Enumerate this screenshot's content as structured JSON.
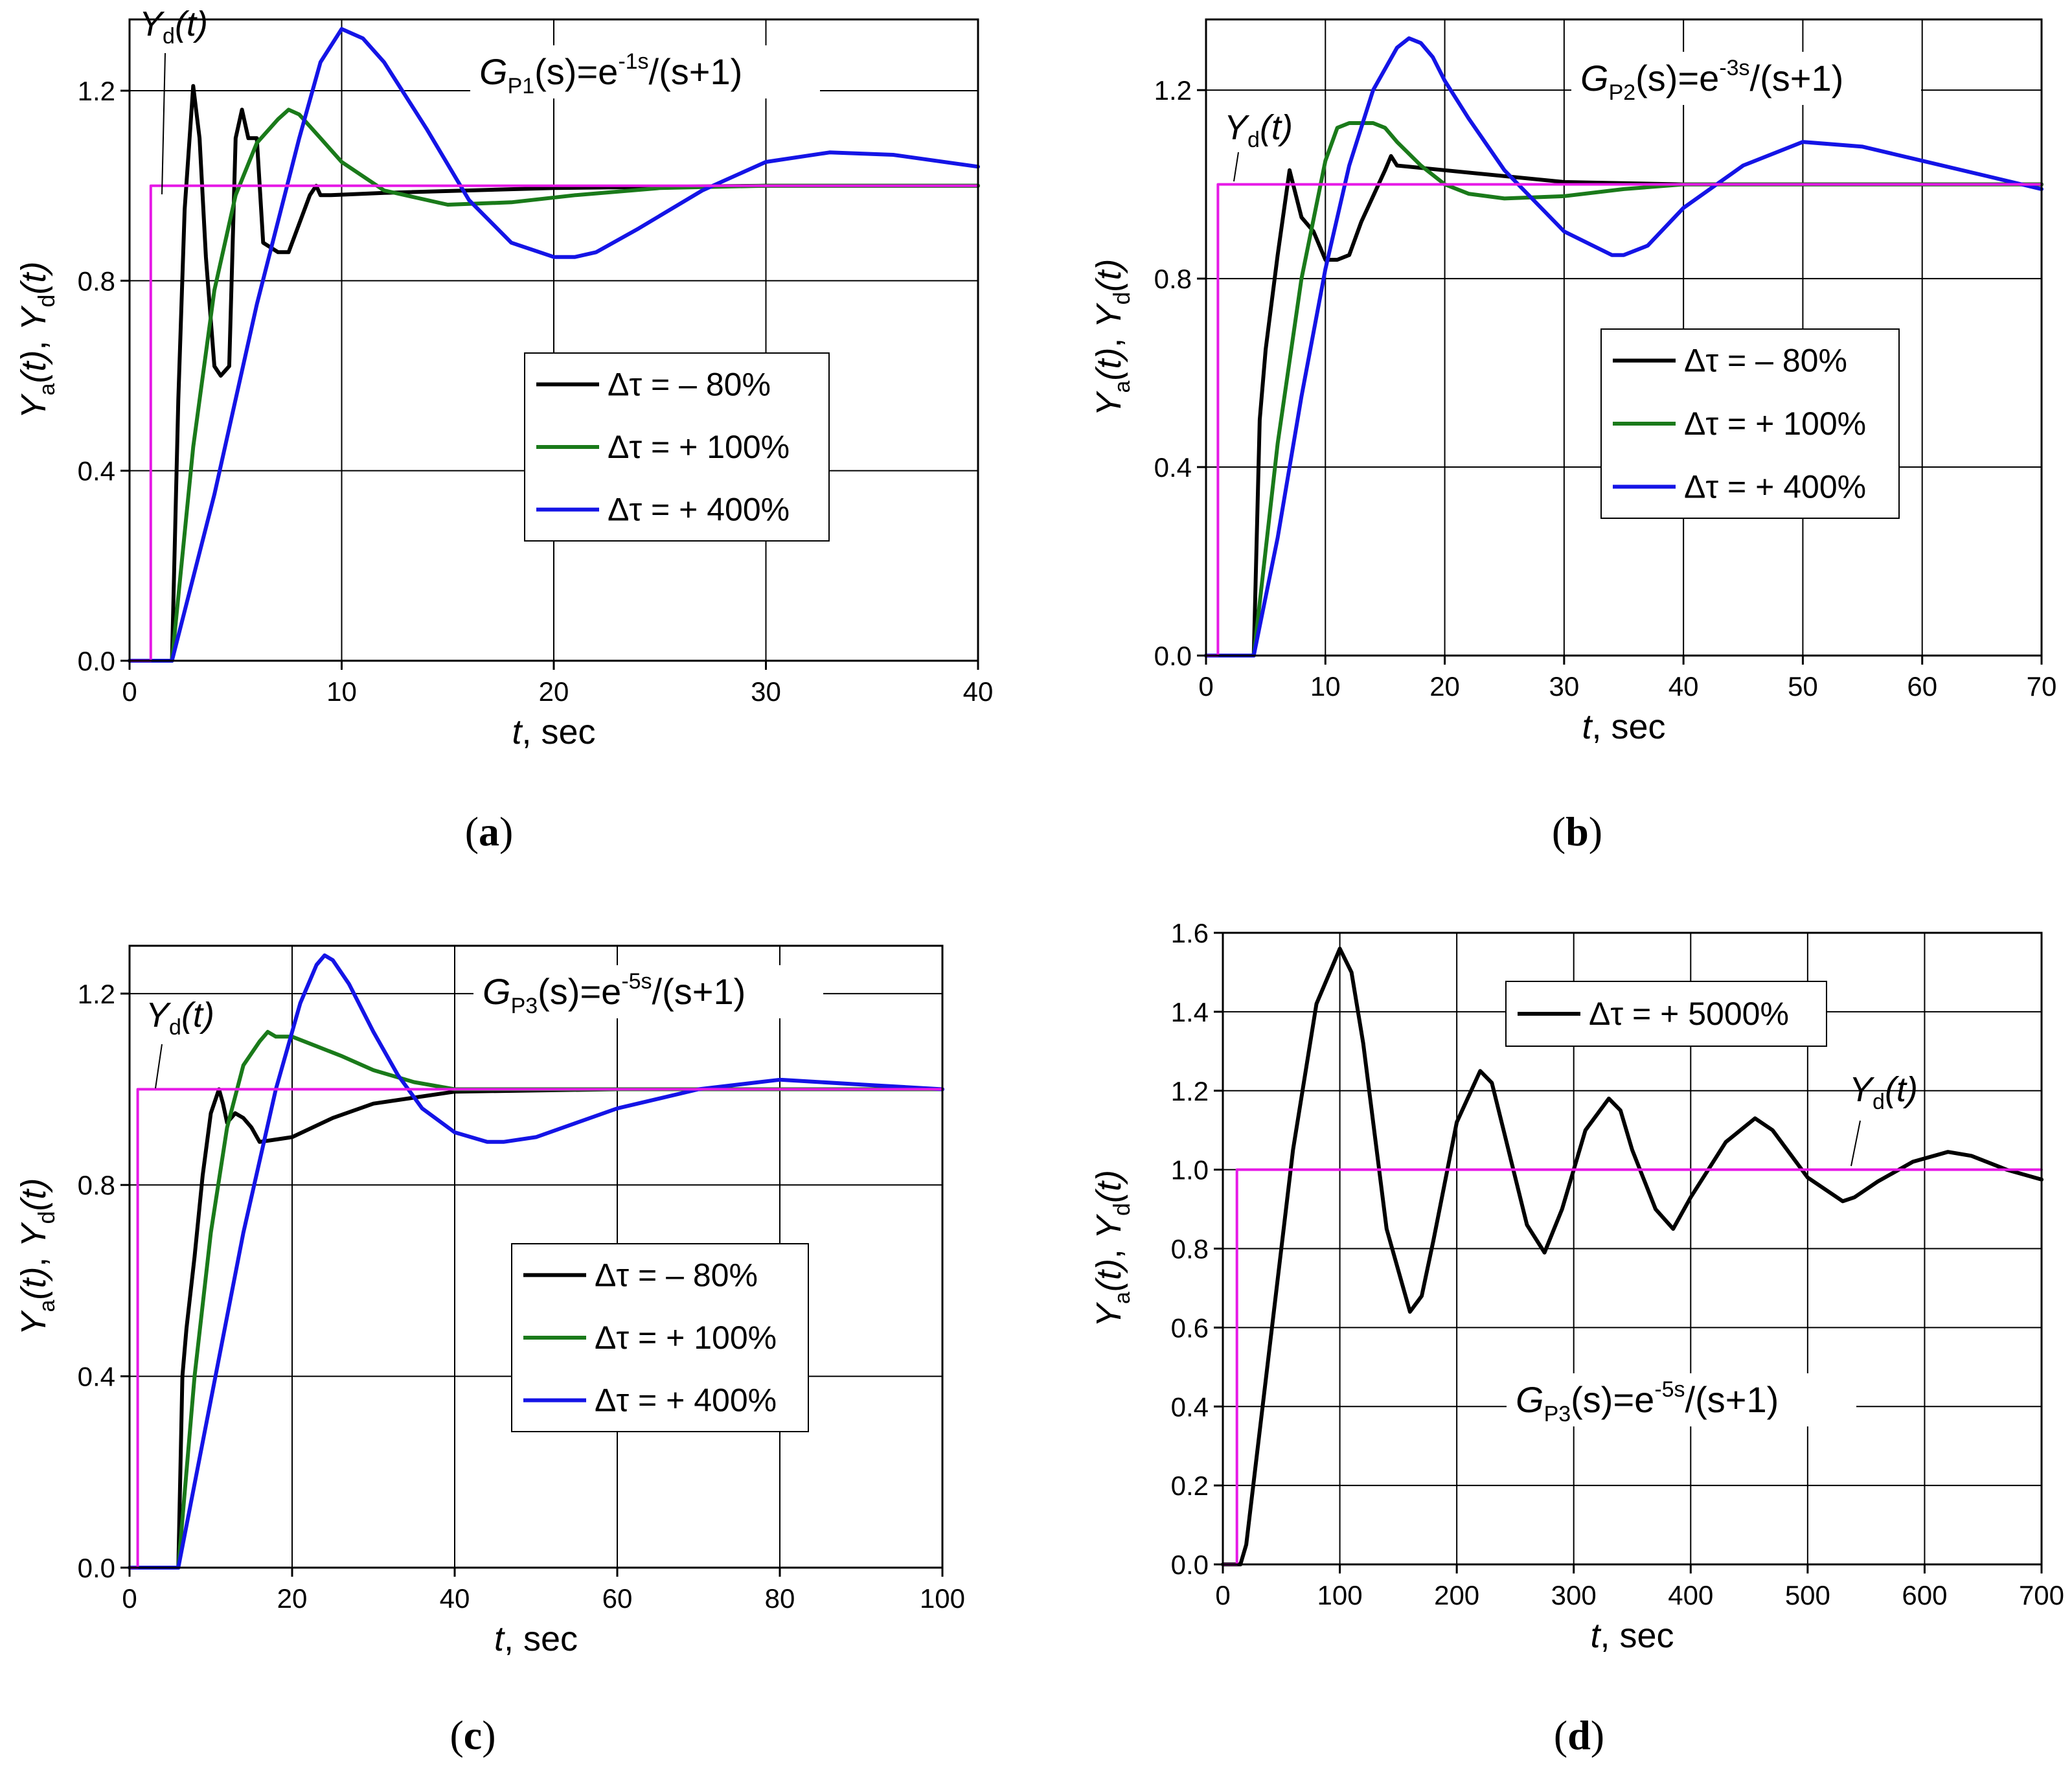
{
  "colors": {
    "black": "#000000",
    "green": "#1a7a1a",
    "blue": "#1414e6",
    "magenta": "#e619e6"
  },
  "chart_data": [
    {
      "id": "a",
      "type": "line",
      "caption": "a",
      "title": {
        "italic": "G",
        "sub": "P1",
        "pre": "(s)=e",
        "sup": "-1s",
        "post": "/(s+1)"
      },
      "xlabel_italic": "t",
      "xlabel_rest": ", sec",
      "ylabel": {
        "y1": "Y",
        "s1": "a",
        "t1": "(t)",
        "sep": ", ",
        "y2": "Y",
        "s2": "d",
        "t2": "(t)"
      },
      "yd_label": {
        "y": "Y",
        "s": "d",
        "t": "(t)"
      },
      "xlim": [
        0,
        40
      ],
      "ylim": [
        0,
        1.35
      ],
      "xticks": [
        0,
        10,
        20,
        30,
        40
      ],
      "xticklabels": [
        "0",
        "10",
        "20",
        "30",
        "40"
      ],
      "yticks": [
        0,
        0.4,
        0.8,
        1.2
      ],
      "yticklabels": [
        "0.0",
        "0.4",
        "0.8",
        "1.2"
      ],
      "legend": [
        "Δτ = – 80%",
        "Δτ = + 100%",
        "Δτ = + 400%"
      ],
      "series": [
        {
          "name": "Δτ = – 80%",
          "color": "black",
          "x": [
            0,
            2,
            2.3,
            2.6,
            3,
            3.3,
            3.6,
            4,
            4.3,
            4.7,
            5,
            5.3,
            5.6,
            6,
            6.3,
            7,
            7.5,
            8,
            8.5,
            8.8,
            9,
            9.5,
            12,
            20,
            30,
            40
          ],
          "y": [
            0,
            0,
            0.55,
            0.95,
            1.21,
            1.1,
            0.85,
            0.62,
            0.6,
            0.62,
            1.1,
            1.16,
            1.1,
            1.1,
            0.88,
            0.86,
            0.86,
            0.92,
            0.98,
            1.0,
            0.98,
            0.98,
            0.985,
            0.995,
            1.0,
            1.0
          ]
        },
        {
          "name": "Δτ = + 100%",
          "color": "green",
          "x": [
            0,
            2,
            3,
            4,
            5,
            6,
            7,
            7.5,
            8,
            9,
            10,
            12,
            15,
            18,
            21,
            25,
            30,
            35,
            40
          ],
          "y": [
            0,
            0,
            0.45,
            0.78,
            0.98,
            1.09,
            1.14,
            1.16,
            1.15,
            1.1,
            1.05,
            0.99,
            0.96,
            0.965,
            0.98,
            0.995,
            1.0,
            1.0,
            1.0
          ]
        },
        {
          "name": "Δτ = + 400%",
          "color": "blue",
          "x": [
            0,
            2,
            4,
            6,
            8,
            9,
            10,
            11,
            12,
            14,
            16,
            18,
            20,
            21,
            22,
            24,
            27,
            30,
            33,
            36,
            40
          ],
          "y": [
            0,
            0,
            0.35,
            0.75,
            1.1,
            1.26,
            1.33,
            1.31,
            1.26,
            1.12,
            0.97,
            0.88,
            0.85,
            0.85,
            0.86,
            0.91,
            0.99,
            1.05,
            1.07,
            1.065,
            1.04
          ]
        },
        {
          "name": "Y_d",
          "color": "magenta",
          "x": [
            0,
            1,
            1,
            40
          ],
          "y": [
            0,
            0,
            1,
            1
          ]
        }
      ]
    },
    {
      "id": "b",
      "type": "line",
      "caption": "b",
      "title": {
        "italic": "G",
        "sub": "P2",
        "pre": "(s)=e",
        "sup": "-3s",
        "post": "/(s+1)"
      },
      "xlabel_italic": "t",
      "xlabel_rest": ", sec",
      "ylabel": {
        "y1": "Y",
        "s1": "a",
        "t1": "(t)",
        "sep": ", ",
        "y2": "Y",
        "s2": "d",
        "t2": "(t)"
      },
      "yd_label": {
        "y": "Y",
        "s": "d",
        "t": "(t)"
      },
      "xlim": [
        0,
        70
      ],
      "ylim": [
        0,
        1.35
      ],
      "xticks": [
        0,
        10,
        20,
        30,
        40,
        50,
        60,
        70
      ],
      "xticklabels": [
        "0",
        "10",
        "20",
        "30",
        "40",
        "50",
        "60",
        "70"
      ],
      "yticks": [
        0,
        0.4,
        0.8,
        1.2
      ],
      "yticklabels": [
        "0.0",
        "0.4",
        "0.8",
        "1.2"
      ],
      "legend": [
        "Δτ = – 80%",
        "Δτ = + 100%",
        "Δτ = + 400%"
      ],
      "series": [
        {
          "name": "Δτ = – 80%",
          "color": "black",
          "x": [
            0,
            4,
            4.5,
            5,
            6,
            7,
            7.3,
            8,
            9,
            10,
            11,
            12,
            13,
            15,
            15.5,
            16,
            20,
            30,
            40,
            70
          ],
          "y": [
            0,
            0,
            0.5,
            0.65,
            0.85,
            1.03,
            1.0,
            0.93,
            0.9,
            0.84,
            0.84,
            0.85,
            0.92,
            1.03,
            1.06,
            1.04,
            1.03,
            1.005,
            1.0,
            1.0
          ]
        },
        {
          "name": "Δτ = + 100%",
          "color": "green",
          "x": [
            0,
            4,
            6,
            8,
            10,
            11,
            12,
            14,
            15,
            16,
            18,
            20,
            22,
            25,
            30,
            35,
            40,
            50,
            70
          ],
          "y": [
            0,
            0,
            0.45,
            0.8,
            1.05,
            1.12,
            1.13,
            1.13,
            1.12,
            1.09,
            1.04,
            1.0,
            0.98,
            0.97,
            0.975,
            0.99,
            1.0,
            1.0,
            1.0
          ]
        },
        {
          "name": "Δτ = + 400%",
          "color": "blue",
          "x": [
            0,
            4,
            6,
            8,
            10,
            12,
            14,
            16,
            17,
            18,
            19,
            20,
            22,
            25,
            30,
            34,
            35,
            37,
            40,
            45,
            50,
            55,
            60,
            65,
            70
          ],
          "y": [
            0,
            0,
            0.25,
            0.55,
            0.82,
            1.04,
            1.2,
            1.29,
            1.31,
            1.3,
            1.27,
            1.22,
            1.14,
            1.03,
            0.9,
            0.85,
            0.85,
            0.87,
            0.95,
            1.04,
            1.09,
            1.08,
            1.05,
            1.02,
            0.99
          ]
        },
        {
          "name": "Y_d",
          "color": "magenta",
          "x": [
            0,
            1,
            1,
            70
          ],
          "y": [
            0,
            0,
            1,
            1
          ]
        }
      ]
    },
    {
      "id": "c",
      "type": "line",
      "caption": "c",
      "title": {
        "italic": "G",
        "sub": "P3",
        "pre": "(s)=e",
        "sup": "-5s",
        "post": "/(s+1)"
      },
      "xlabel_italic": "t",
      "xlabel_rest": ", sec",
      "ylabel": {
        "y1": "Y",
        "s1": "a",
        "t1": "(t)",
        "sep": ", ",
        "y2": "Y",
        "s2": "d",
        "t2": "(t)"
      },
      "yd_label": {
        "y": "Y",
        "s": "d",
        "t": "(t)"
      },
      "xlim": [
        0,
        100
      ],
      "ylim": [
        0,
        1.3
      ],
      "xticks": [
        0,
        20,
        40,
        60,
        80,
        100
      ],
      "xticklabels": [
        "0",
        "20",
        "40",
        "60",
        "80",
        "100"
      ],
      "yticks": [
        0,
        0.4,
        0.8,
        1.2
      ],
      "yticklabels": [
        "0.0",
        "0.4",
        "0.8",
        "1.2"
      ],
      "legend": [
        "Δτ = – 80%",
        "Δτ = + 100%",
        "Δτ = + 400%"
      ],
      "series": [
        {
          "name": "Δτ = – 80%",
          "color": "black",
          "x": [
            0,
            6,
            6.5,
            7,
            8,
            9,
            10,
            11,
            11.5,
            12,
            13,
            14,
            15,
            16,
            18,
            20,
            25,
            30,
            40,
            60,
            100
          ],
          "y": [
            0,
            0,
            0.4,
            0.5,
            0.65,
            0.82,
            0.95,
            1.0,
            0.97,
            0.93,
            0.95,
            0.94,
            0.92,
            0.89,
            0.895,
            0.9,
            0.94,
            0.97,
            0.995,
            1.0,
            1.0
          ]
        },
        {
          "name": "Δτ = + 100%",
          "color": "green",
          "x": [
            0,
            6,
            8,
            10,
            12,
            14,
            16,
            17,
            18,
            20,
            23,
            26,
            30,
            35,
            40,
            50,
            100
          ],
          "y": [
            0,
            0,
            0.4,
            0.7,
            0.92,
            1.05,
            1.1,
            1.12,
            1.11,
            1.11,
            1.09,
            1.07,
            1.04,
            1.015,
            1.0,
            1.0,
            1.0
          ]
        },
        {
          "name": "Δτ = + 400%",
          "color": "blue",
          "x": [
            0,
            6,
            10,
            14,
            18,
            21,
            23,
            24,
            25,
            27,
            30,
            33,
            36,
            40,
            44,
            46,
            50,
            55,
            60,
            70,
            80,
            90,
            100
          ],
          "y": [
            0,
            0,
            0.35,
            0.7,
            1.0,
            1.18,
            1.26,
            1.28,
            1.27,
            1.22,
            1.12,
            1.03,
            0.96,
            0.91,
            0.89,
            0.89,
            0.9,
            0.93,
            0.96,
            1.0,
            1.02,
            1.01,
            1.0
          ]
        },
        {
          "name": "Y_d",
          "color": "magenta",
          "x": [
            0,
            1,
            1,
            100
          ],
          "y": [
            0,
            0,
            1,
            1
          ]
        }
      ]
    },
    {
      "id": "d",
      "type": "line",
      "caption": "d",
      "title": {
        "italic": "G",
        "sub": "P3",
        "pre": "(s)=e",
        "sup": "-5s",
        "post": "/(s+1)"
      },
      "xlabel_italic": "t",
      "xlabel_rest": ", sec",
      "ylabel": {
        "y1": "Y",
        "s1": "a",
        "t1": "(t)",
        "sep": ",  ",
        "y2": "Y",
        "s2": "d",
        "t2": "(t)"
      },
      "yd_label": {
        "y": "Y",
        "s": "d",
        "t": "(t)"
      },
      "xlim": [
        0,
        700
      ],
      "ylim": [
        0,
        1.6
      ],
      "xticks": [
        0,
        100,
        200,
        300,
        400,
        500,
        600,
        700
      ],
      "xticklabels": [
        "0",
        "100",
        "200",
        "300",
        "400",
        "500",
        "600",
        "700"
      ],
      "yticks": [
        0,
        0.2,
        0.4,
        0.6,
        0.8,
        1.0,
        1.2,
        1.4,
        1.6
      ],
      "yticklabels": [
        "0.0",
        "0.2",
        "0.4",
        "0.6",
        "0.8",
        "1.0",
        "1.2",
        "1.4",
        "1.6"
      ],
      "legend": [
        "Δτ = + 5000%"
      ],
      "series": [
        {
          "name": "Δτ = + 5000%",
          "color": "black",
          "x": [
            0,
            15,
            20,
            40,
            60,
            80,
            100,
            110,
            120,
            140,
            160,
            170,
            180,
            200,
            220,
            230,
            240,
            260,
            275,
            290,
            310,
            330,
            340,
            350,
            370,
            385,
            400,
            430,
            455,
            470,
            500,
            530,
            540,
            560,
            590,
            620,
            640,
            670,
            700
          ],
          "y": [
            0,
            0,
            0.05,
            0.55,
            1.05,
            1.42,
            1.56,
            1.5,
            1.32,
            0.85,
            0.64,
            0.68,
            0.82,
            1.12,
            1.25,
            1.22,
            1.1,
            0.86,
            0.79,
            0.9,
            1.1,
            1.18,
            1.15,
            1.05,
            0.9,
            0.85,
            0.93,
            1.07,
            1.13,
            1.1,
            0.98,
            0.92,
            0.93,
            0.97,
            1.02,
            1.045,
            1.035,
            1.0,
            0.975
          ]
        },
        {
          "name": "Y_d",
          "color": "magenta",
          "x": [
            0,
            12,
            12,
            700
          ],
          "y": [
            0,
            0,
            1,
            1
          ]
        }
      ]
    }
  ]
}
